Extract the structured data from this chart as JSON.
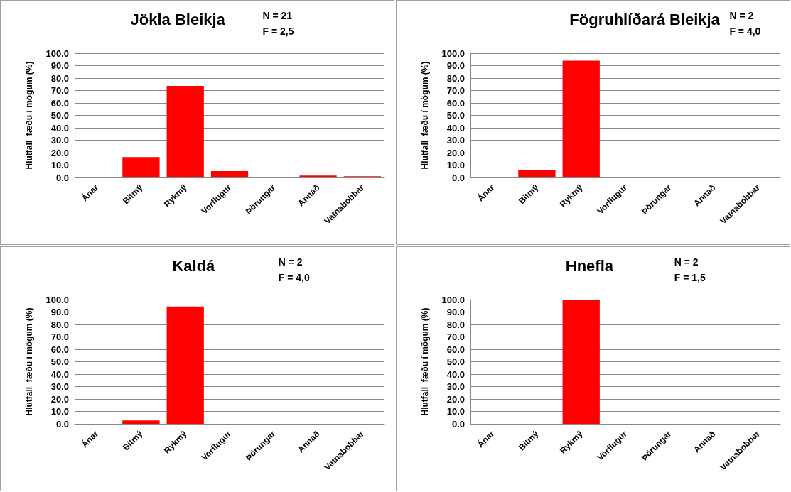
{
  "chart_data": [
    {
      "type": "bar",
      "title": "Jökla Bleikja",
      "annotations": [
        "N = 21",
        "F = 2,5"
      ],
      "ylabel": "Hlutfall  fæðu í mögum (%)",
      "categories": [
        "Ánar",
        "Bitmý",
        "Rykmý",
        "Vorflugur",
        "Þörungar",
        "Annað",
        "Vatnabobbar"
      ],
      "values": [
        0.4,
        16.4,
        73.7,
        5.1,
        0.4,
        1.6,
        1.0
      ],
      "color": "#ff0000",
      "ylim": [
        0,
        100
      ],
      "yticks": [
        {
          "value": 0,
          "label": "0.0"
        },
        {
          "value": 10,
          "label": "10.0"
        },
        {
          "value": 20,
          "label": "20.0"
        },
        {
          "value": 30,
          "label": "30.0"
        },
        {
          "value": 40,
          "label": "40.0"
        },
        {
          "value": 50,
          "label": "50.0"
        },
        {
          "value": 60,
          "label": "60.0"
        },
        {
          "value": 70,
          "label": "70.0"
        },
        {
          "value": 80,
          "label": "80.0"
        },
        {
          "value": 90,
          "label": "90.0"
        },
        {
          "value": 100,
          "label": "100.0"
        }
      ],
      "grid": "y"
    },
    {
      "type": "bar",
      "title": "Fögruhlíðará Bleikja",
      "annotations": [
        "N = 2",
        "F = 4,0"
      ],
      "ylabel": "Hlutfall  fæðu í mögum (%)",
      "categories": [
        "Ánar",
        "Bitmý",
        "Rykmý",
        "Vorflugur",
        "Þörungar",
        "Annað",
        "Vatnabobbar"
      ],
      "values": [
        0,
        6.0,
        94.0,
        0,
        0,
        0,
        0
      ],
      "color": "#ff0000",
      "ylim": [
        0,
        100
      ],
      "yticks": [
        {
          "value": 0,
          "label": "0.0"
        },
        {
          "value": 10,
          "label": "10.0"
        },
        {
          "value": 20,
          "label": "20.0"
        },
        {
          "value": 30,
          "label": "30.0"
        },
        {
          "value": 40,
          "label": "40.0"
        },
        {
          "value": 50,
          "label": "50.0"
        },
        {
          "value": 60,
          "label": "60.0"
        },
        {
          "value": 70,
          "label": "70.0"
        },
        {
          "value": 80,
          "label": "80.0"
        },
        {
          "value": 90,
          "label": "90.0"
        },
        {
          "value": 100,
          "label": "100.0"
        }
      ],
      "grid": "y"
    },
    {
      "type": "bar",
      "title": "Kaldá",
      "annotations": [
        "N = 2",
        "F = 4,0"
      ],
      "ylabel": "Hlutfall  fæðu í mögum (%)",
      "categories": [
        "Ánar",
        "Bitmý",
        "Rykmý",
        "Vorflugur",
        "Þörungar",
        "Annað",
        "Vatnabobbar"
      ],
      "values": [
        0,
        2.7,
        94.5,
        0,
        0,
        0,
        0
      ],
      "color": "#ff0000",
      "ylim": [
        0,
        100
      ],
      "yticks": [
        {
          "value": 0,
          "label": "0.0"
        },
        {
          "value": 10,
          "label": "10.0"
        },
        {
          "value": 20,
          "label": "20.0"
        },
        {
          "value": 30,
          "label": "30.0"
        },
        {
          "value": 40,
          "label": "40.0"
        },
        {
          "value": 50,
          "label": "50.0"
        },
        {
          "value": 60,
          "label": "60.0"
        },
        {
          "value": 70,
          "label": "70.0"
        },
        {
          "value": 80,
          "label": "80.0"
        },
        {
          "value": 90,
          "label": "90.0"
        },
        {
          "value": 100,
          "label": "100.0"
        }
      ],
      "grid": "y"
    },
    {
      "type": "bar",
      "title": "Hnefla",
      "annotations": [
        "N = 2",
        "F = 1,5"
      ],
      "ylabel": "Hlutfall  fæðu í mögum (%)",
      "categories": [
        "Ánar",
        "Bitmý",
        "Rykmý",
        "Vorflugur",
        "Þörungar",
        "Annað",
        "Vatnabobbar"
      ],
      "values": [
        0,
        0,
        100,
        0,
        0,
        0,
        0
      ],
      "color": "#ff0000",
      "ylim": [
        0,
        100
      ],
      "yticks": [
        {
          "value": 0,
          "label": "0.0"
        },
        {
          "value": 10,
          "label": "10.0"
        },
        {
          "value": 20,
          "label": "20.0"
        },
        {
          "value": 30,
          "label": "30.0"
        },
        {
          "value": 40,
          "label": "40.0"
        },
        {
          "value": 50,
          "label": "50.0"
        },
        {
          "value": 60,
          "label": "60.0"
        },
        {
          "value": 70,
          "label": "70.0"
        },
        {
          "value": 80,
          "label": "80.0"
        },
        {
          "value": 90,
          "label": "90.0"
        },
        {
          "value": 100,
          "label": "100.0"
        }
      ],
      "grid": "y"
    }
  ]
}
